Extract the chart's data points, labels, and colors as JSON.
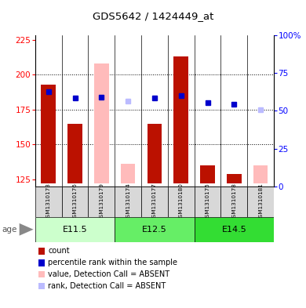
{
  "title": "GDS5642 / 1424449_at",
  "samples": [
    "GSM1310173",
    "GSM1310176",
    "GSM1310179",
    "GSM1310174",
    "GSM1310177",
    "GSM1310180",
    "GSM1310175",
    "GSM1310178",
    "GSM1310181"
  ],
  "groups": [
    {
      "label": "E11.5",
      "indices": [
        0,
        1,
        2
      ],
      "color": "#ccffcc"
    },
    {
      "label": "E12.5",
      "indices": [
        3,
        4,
        5
      ],
      "color": "#66ee66"
    },
    {
      "label": "E14.5",
      "indices": [
        6,
        7,
        8
      ],
      "color": "#33dd33"
    }
  ],
  "count_values": [
    193,
    165,
    null,
    null,
    165,
    213,
    135,
    129,
    null
  ],
  "count_absent_values": [
    null,
    null,
    208,
    136,
    null,
    null,
    null,
    null,
    135
  ],
  "rank_values": [
    188,
    183,
    184,
    null,
    183,
    185,
    180,
    179,
    null
  ],
  "rank_absent_values": [
    null,
    null,
    null,
    181,
    null,
    null,
    null,
    null,
    175
  ],
  "ylim_left": [
    120,
    228
  ],
  "left_ticks": [
    125,
    150,
    175,
    200,
    225
  ],
  "right_ticks": [
    0,
    25,
    50,
    75,
    100
  ],
  "right_tick_labels": [
    "0",
    "25",
    "50",
    "75",
    "100%"
  ],
  "color_count": "#bb1100",
  "color_rank": "#0000cc",
  "color_count_absent": "#ffbbbb",
  "color_rank_absent": "#bbbbff",
  "bar_bottom": 122,
  "dotted_lines": [
    150,
    175,
    200
  ],
  "sample_bg": "#d8d8d8",
  "fig_w": 3.9,
  "fig_h": 3.93
}
